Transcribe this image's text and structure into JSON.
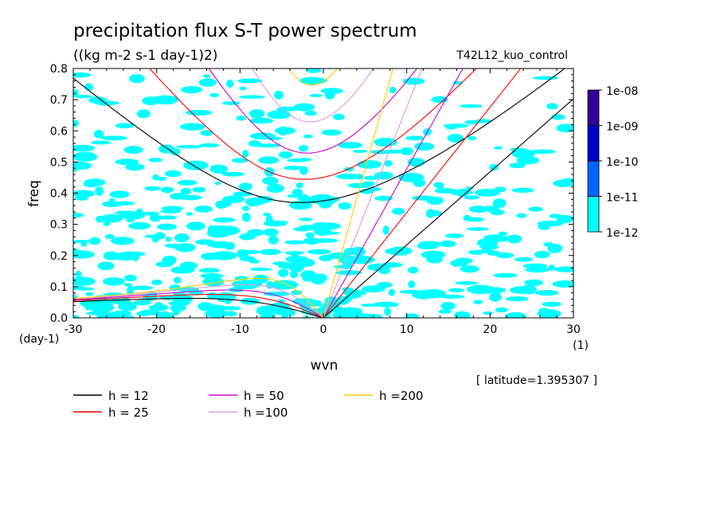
{
  "chart_data": {
    "type": "contour",
    "title": "precipitation flux S-T power spectrum",
    "units": "((kg m-2 s-1 day-1)2)",
    "run_label": "T42L12_kuo_control",
    "xlabel": "wvn",
    "x_unit": "(1)",
    "ylabel": "freq",
    "y_unit": "(day-1)",
    "xlim": [
      -30,
      30
    ],
    "ylim": [
      0,
      0.8
    ],
    "xticks": [
      -30,
      -20,
      -10,
      0,
      10,
      20,
      30
    ],
    "yticks": [
      0.0,
      0.1,
      0.2,
      0.3,
      0.4,
      0.5,
      0.6,
      0.7,
      0.8
    ],
    "latitude_note": "[ latitude=1.395307 ]",
    "colorbar": {
      "levels": [
        "1e-12",
        "1e-11",
        "1e-10",
        "1e-09",
        "1e-08"
      ],
      "colors": [
        "#00ffff",
        "#0066ff",
        "#0000cc",
        "#330099"
      ]
    },
    "dispersion_curves": [
      {
        "name": "h = 12",
        "h": 12,
        "color": "#000000"
      },
      {
        "name": "h = 25",
        "h": 25,
        "color": "#ff0000"
      },
      {
        "name": "h = 50",
        "h": 50,
        "color": "#cc00cc"
      },
      {
        "name": "h =100",
        "h": 100,
        "color": "#dd99dd"
      },
      {
        "name": "h =200",
        "h": 200,
        "color": "#ffcc00"
      }
    ],
    "shaded_region_level": "1e-12 to 1e-11"
  }
}
